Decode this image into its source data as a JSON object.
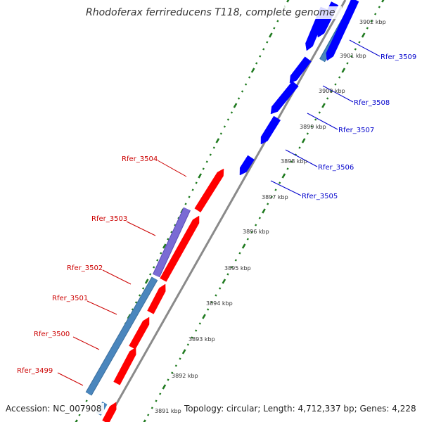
{
  "title": "Rhodoferax ferrireducens T118, complete genome",
  "footer": {
    "accession": "Accession: NC_007908",
    "summary": "Topology: circular; Length: 4,712,337 bp; Genes: 4,228"
  },
  "colors": {
    "forward_gene": "#ff0000",
    "reverse_gene": "#0000ff",
    "forward_label": "#cc0000",
    "reverse_label": "#0000cc",
    "cds_steelblue": "#4a86bd",
    "cds_purple": "#7a6bd4",
    "backbone": "#888888",
    "tick_green": "#1f7a1f"
  },
  "ticks": [
    "3891 kbp",
    "3892 kbp",
    "3893 kbp",
    "3894 kbp",
    "3895 kbp",
    "3896 kbp",
    "3897 kbp",
    "3898 kbp",
    "3899 kbp",
    "3900 kbp",
    "3901 kbp",
    "3902 kbp"
  ],
  "forward_labels": [
    "Rfer_3499",
    "Rfer_3500",
    "Rfer_3501",
    "Rfer_3502",
    "Rfer_3503",
    "Rfer_3504"
  ],
  "reverse_labels": [
    "Rfer_3505",
    "Rfer_3506",
    "Rfer_3507",
    "Rfer_3508",
    "Rfer_3509"
  ]
}
